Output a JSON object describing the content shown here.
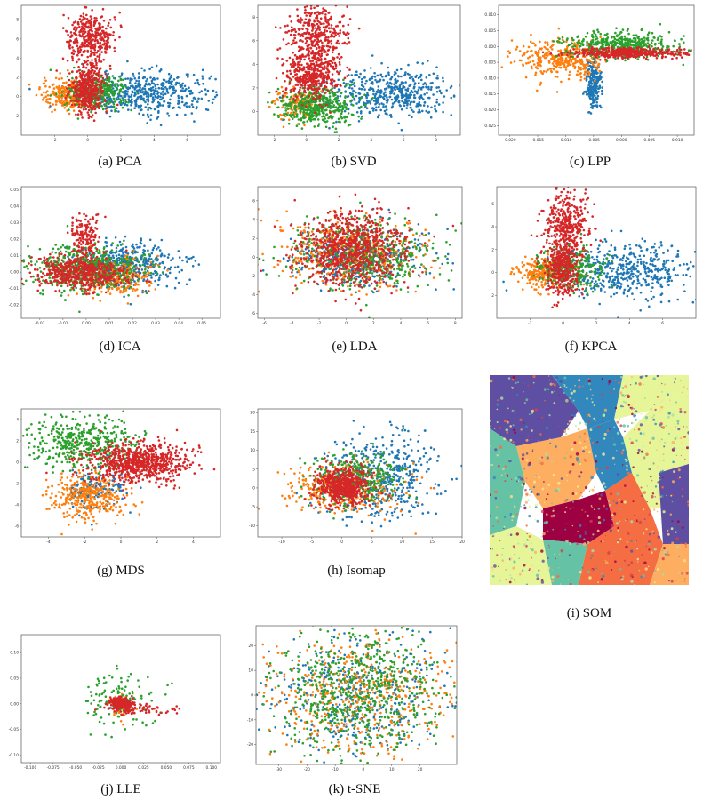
{
  "colors": {
    "blue": "#1f77b4",
    "orange": "#ff7f0e",
    "green": "#2ca02c",
    "red": "#d62728"
  },
  "som_palette": [
    "#5e4fa2",
    "#3288bd",
    "#66c2a5",
    "#abdda4",
    "#e6f598",
    "#fee08b",
    "#fdae61",
    "#f46d43",
    "#d53e4f",
    "#9e0142"
  ],
  "captions": {
    "pca": "(a) PCA",
    "svd": "(b) SVD",
    "lpp": "(c) LPP",
    "ica": "(d) ICA",
    "lda": "(e) LDA",
    "kpca": "(f) KPCA",
    "mds": "(g) MDS",
    "isomap": "(h) Isomap",
    "som": "(i) SOM",
    "lle": "(j) LLE",
    "tsne": "(k) t-SNE"
  },
  "chart_data": [
    {
      "id": "pca",
      "type": "scatter",
      "xlim": [
        -4,
        8
      ],
      "ylim": [
        -4,
        9.5
      ],
      "xticks": [
        "-2",
        "0",
        "2",
        "4",
        "6"
      ],
      "yticks": [
        "-2",
        "0",
        "2",
        "4",
        "6",
        "8"
      ],
      "series": [
        {
          "color": "blue",
          "clusters": [
            {
              "cx": 3.5,
              "cy": 0.4,
              "sx": 2.0,
              "sy": 1.1,
              "n": 500
            }
          ]
        },
        {
          "color": "orange",
          "clusters": [
            {
              "cx": -1.2,
              "cy": 0.2,
              "sx": 0.8,
              "sy": 0.8,
              "n": 250
            }
          ]
        },
        {
          "color": "green",
          "clusters": [
            {
              "cx": 0.6,
              "cy": 0.4,
              "sx": 0.9,
              "sy": 0.9,
              "n": 300
            }
          ]
        },
        {
          "color": "red",
          "clusters": [
            {
              "cx": 0.0,
              "cy": 0.8,
              "sx": 0.5,
              "sy": 1.2,
              "n": 400
            },
            {
              "cx": 0.2,
              "cy": 6.0,
              "sx": 0.7,
              "sy": 1.4,
              "n": 400
            }
          ]
        }
      ]
    },
    {
      "id": "svd",
      "type": "scatter",
      "xlim": [
        -3,
        9.5
      ],
      "ylim": [
        -2,
        9
      ],
      "xticks": [
        "-2",
        "0",
        "2",
        "4",
        "6",
        "8"
      ],
      "yticks": [
        "0",
        "2",
        "4",
        "6",
        "8"
      ],
      "series": [
        {
          "color": "blue",
          "clusters": [
            {
              "cx": 5.0,
              "cy": 1.6,
              "sx": 2.0,
              "sy": 1.0,
              "n": 500
            }
          ]
        },
        {
          "color": "orange",
          "clusters": [
            {
              "cx": -0.6,
              "cy": 0.6,
              "sx": 0.7,
              "sy": 0.6,
              "n": 150
            }
          ]
        },
        {
          "color": "green",
          "clusters": [
            {
              "cx": 0.6,
              "cy": 0.4,
              "sx": 1.2,
              "sy": 0.8,
              "n": 450
            }
          ]
        },
        {
          "color": "red",
          "clusters": [
            {
              "cx": 0.3,
              "cy": 3.0,
              "sx": 0.8,
              "sy": 1.0,
              "n": 400
            },
            {
              "cx": 0.6,
              "cy": 6.6,
              "sx": 0.9,
              "sy": 1.3,
              "n": 400
            }
          ]
        }
      ]
    },
    {
      "id": "lpp",
      "type": "scatter",
      "xlim": [
        -0.022,
        0.013
      ],
      "ylim": [
        -0.028,
        0.013
      ],
      "xticks": [
        "-0.020",
        "-0.015",
        "-0.010",
        "-0.005",
        "0.000",
        "0.005",
        "0.010"
      ],
      "yticks": [
        "-0.025",
        "-0.020",
        "-0.015",
        "-0.010",
        "-0.005",
        "0.000",
        "0.005",
        "0.010"
      ],
      "series": [
        {
          "color": "blue",
          "clusters": [
            {
              "cx": -0.005,
              "cy": -0.012,
              "sx": 0.0007,
              "sy": 0.004,
              "n": 250
            }
          ]
        },
        {
          "color": "orange",
          "clusters": [
            {
              "cx": -0.011,
              "cy": -0.004,
              "sx": 0.004,
              "sy": 0.003,
              "n": 350
            }
          ]
        },
        {
          "color": "green",
          "clusters": [
            {
              "cx": 0.0,
              "cy": 0.0005,
              "sx": 0.005,
              "sy": 0.002,
              "n": 450
            }
          ]
        },
        {
          "color": "red",
          "clusters": [
            {
              "cx": 0.001,
              "cy": -0.002,
              "sx": 0.005,
              "sy": 0.0008,
              "n": 450
            }
          ]
        }
      ]
    },
    {
      "id": "ica",
      "type": "scatter",
      "xlim": [
        -0.028,
        0.058
      ],
      "ylim": [
        -0.028,
        0.052
      ],
      "xticks": [
        "-0.02",
        "-0.01",
        "0.00",
        "0.01",
        "0.02",
        "0.03",
        "0.04",
        "0.05"
      ],
      "yticks": [
        "-0.02",
        "-0.01",
        "0.00",
        "0.01",
        "0.02",
        "0.03",
        "0.04",
        "0.05"
      ],
      "series": [
        {
          "color": "blue",
          "clusters": [
            {
              "cx": 0.018,
              "cy": 0.004,
              "sx": 0.011,
              "sy": 0.007,
              "n": 450
            }
          ]
        },
        {
          "color": "orange",
          "clusters": [
            {
              "cx": 0.01,
              "cy": -0.003,
              "sx": 0.009,
              "sy": 0.006,
              "n": 300
            }
          ]
        },
        {
          "color": "green",
          "clusters": [
            {
              "cx": 0.0,
              "cy": 0.002,
              "sx": 0.012,
              "sy": 0.007,
              "n": 550
            }
          ]
        },
        {
          "color": "red",
          "clusters": [
            {
              "cx": -0.002,
              "cy": 0.0,
              "sx": 0.01,
              "sy": 0.005,
              "n": 550
            },
            {
              "cx": 0.0,
              "cy": 0.022,
              "sx": 0.003,
              "sy": 0.006,
              "n": 150
            }
          ]
        }
      ]
    },
    {
      "id": "lda",
      "type": "scatter",
      "xlim": [
        -6.5,
        8.5
      ],
      "ylim": [
        -6.5,
        7.5
      ],
      "xticks": [
        "-6",
        "-4",
        "-2",
        "0",
        "2",
        "4",
        "6",
        "8"
      ],
      "yticks": [
        "-6",
        "-4",
        "-2",
        "0",
        "2",
        "4",
        "6"
      ],
      "series": [
        {
          "color": "blue",
          "clusters": [
            {
              "cx": 0.8,
              "cy": 0.0,
              "sx": 2.4,
              "sy": 1.6,
              "n": 450
            }
          ]
        },
        {
          "color": "orange",
          "clusters": [
            {
              "cx": 0.0,
              "cy": 0.5,
              "sx": 2.6,
              "sy": 1.8,
              "n": 450
            }
          ]
        },
        {
          "color": "green",
          "clusters": [
            {
              "cx": 1.5,
              "cy": 0.2,
              "sx": 2.6,
              "sy": 1.8,
              "n": 450
            }
          ]
        },
        {
          "color": "red",
          "clusters": [
            {
              "cx": 0.5,
              "cy": 0.8,
              "sx": 1.9,
              "sy": 1.9,
              "n": 800
            }
          ]
        }
      ]
    },
    {
      "id": "kpca",
      "type": "scatter",
      "xlim": [
        -4,
        8
      ],
      "ylim": [
        -4,
        7.5
      ],
      "xticks": [
        "-2",
        "0",
        "2",
        "4",
        "6"
      ],
      "yticks": [
        "-2",
        "0",
        "2",
        "4",
        "6"
      ],
      "series": [
        {
          "color": "blue",
          "clusters": [
            {
              "cx": 3.5,
              "cy": 0.3,
              "sx": 2.0,
              "sy": 1.2,
              "n": 500
            }
          ]
        },
        {
          "color": "orange",
          "clusters": [
            {
              "cx": -1.3,
              "cy": 0.0,
              "sx": 0.8,
              "sy": 0.7,
              "n": 250
            }
          ]
        },
        {
          "color": "green",
          "clusters": [
            {
              "cx": 0.5,
              "cy": 0.3,
              "sx": 0.9,
              "sy": 0.9,
              "n": 300
            }
          ]
        },
        {
          "color": "red",
          "clusters": [
            {
              "cx": 0.0,
              "cy": 0.5,
              "sx": 0.5,
              "sy": 1.2,
              "n": 400
            },
            {
              "cx": 0.3,
              "cy": 4.3,
              "sx": 0.7,
              "sy": 1.3,
              "n": 350
            }
          ]
        }
      ]
    },
    {
      "id": "mds",
      "type": "scatter",
      "xlim": [
        -5.5,
        5.5
      ],
      "ylim": [
        -7,
        5
      ],
      "xticks": [
        "-4",
        "-2",
        "0",
        "2",
        "4"
      ],
      "yticks": [
        "-6",
        "-4",
        "-2",
        "0",
        "2",
        "4"
      ],
      "series": [
        {
          "color": "blue",
          "clusters": [
            {
              "cx": -1.5,
              "cy": -2.5,
              "sx": 0.8,
              "sy": 0.8,
              "n": 150
            }
          ]
        },
        {
          "color": "orange",
          "clusters": [
            {
              "cx": -1.8,
              "cy": -3.2,
              "sx": 1.0,
              "sy": 1.1,
              "n": 350
            }
          ]
        },
        {
          "color": "green",
          "clusters": [
            {
              "cx": -2.0,
              "cy": 1.8,
              "sx": 1.5,
              "sy": 1.2,
              "n": 450
            }
          ]
        },
        {
          "color": "red",
          "clusters": [
            {
              "cx": 1.0,
              "cy": 0.0,
              "sx": 1.4,
              "sy": 0.9,
              "n": 800
            }
          ]
        }
      ]
    },
    {
      "id": "isomap",
      "type": "scatter",
      "xlim": [
        -14,
        20
      ],
      "ylim": [
        -13,
        21
      ],
      "xticks": [
        "-10",
        "-5",
        "0",
        "5",
        "10",
        "15",
        "20"
      ],
      "yticks": [
        "-10",
        "-5",
        "0",
        "5",
        "10",
        "15",
        "20"
      ],
      "series": [
        {
          "color": "blue",
          "clusters": [
            {
              "cx": 7.0,
              "cy": 3.0,
              "sx": 4.5,
              "sy": 6.0,
              "n": 450
            }
          ]
        },
        {
          "color": "orange",
          "clusters": [
            {
              "cx": 0.0,
              "cy": 0.0,
              "sx": 5.0,
              "sy": 3.5,
              "n": 350
            }
          ]
        },
        {
          "color": "green",
          "clusters": [
            {
              "cx": 2.0,
              "cy": 2.0,
              "sx": 3.5,
              "sy": 3.5,
              "n": 350
            }
          ]
        },
        {
          "color": "red",
          "clusters": [
            {
              "cx": 0.0,
              "cy": 0.5,
              "sx": 2.2,
              "sy": 2.6,
              "n": 600
            }
          ]
        }
      ]
    },
    {
      "id": "lle",
      "type": "scatter",
      "xlim": [
        -0.11,
        0.11
      ],
      "ylim": [
        -0.115,
        0.135
      ],
      "xticks": [
        "-0.100",
        "-0.075",
        "-0.050",
        "-0.025",
        "0.000",
        "0.025",
        "0.050",
        "0.075",
        "0.100"
      ],
      "yticks": [
        "-0.10",
        "-0.05",
        "0.00",
        "0.05",
        "0.10"
      ],
      "series": [
        {
          "color": "blue",
          "clusters": [
            {
              "cx": 0.0,
              "cy": 0.0,
              "sx": 0.004,
              "sy": 0.004,
              "n": 80
            }
          ]
        },
        {
          "color": "orange",
          "clusters": [
            {
              "cx": 0.0,
              "cy": -0.005,
              "sx": 0.005,
              "sy": 0.012,
              "n": 80
            }
          ]
        },
        {
          "color": "green",
          "clusters": [
            {
              "cx": 0.0,
              "cy": 0.01,
              "sx": 0.02,
              "sy": 0.03,
              "n": 120
            }
          ]
        },
        {
          "color": "red",
          "clusters": [
            {
              "cx": 0.0,
              "cy": 0.0,
              "sx": 0.006,
              "sy": 0.006,
              "n": 250
            },
            {
              "cx": 0.03,
              "cy": -0.012,
              "sx": 0.02,
              "sy": 0.006,
              "n": 60
            }
          ]
        }
      ]
    },
    {
      "id": "tsne",
      "type": "scatter",
      "xlim": [
        -38,
        33
      ],
      "ylim": [
        -28,
        28
      ],
      "xticks": [
        "-30",
        "-20",
        "-10",
        "0",
        "10",
        "20"
      ],
      "yticks": [
        "-20",
        "-10",
        "0",
        "10",
        "20"
      ],
      "series": [
        {
          "color": "blue",
          "clusters": [
            {
              "cx": -2,
              "cy": -1,
              "sx": 16,
              "sy": 12,
              "n": 450
            }
          ]
        },
        {
          "color": "orange",
          "clusters": [
            {
              "cx": -2,
              "cy": 0,
              "sx": 17,
              "sy": 13,
              "n": 550
            }
          ]
        },
        {
          "color": "green",
          "clusters": [
            {
              "cx": -2,
              "cy": 1,
              "sx": 15,
              "sy": 12,
              "n": 650
            }
          ]
        },
        {
          "color": "red",
          "clusters": []
        }
      ]
    }
  ]
}
